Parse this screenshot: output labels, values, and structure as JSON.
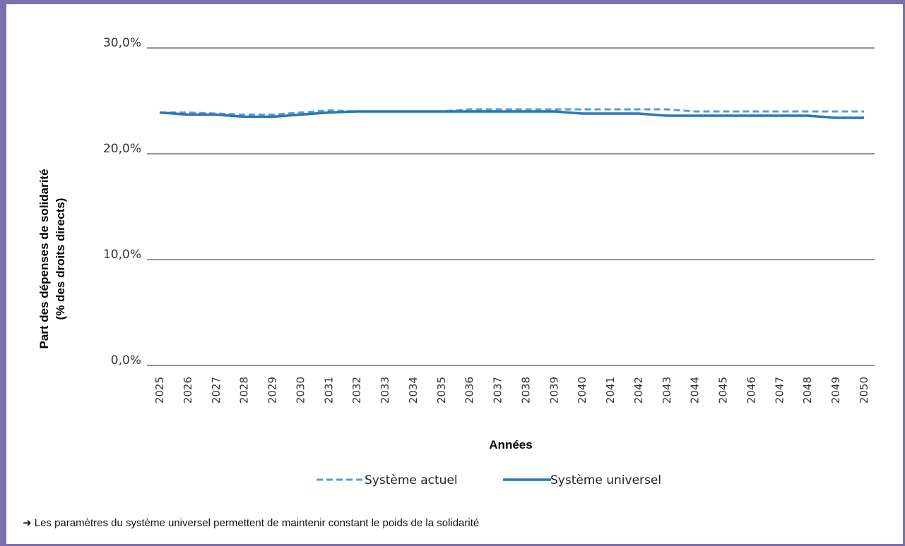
{
  "chart_data": {
    "type": "line",
    "xlabel": "Années",
    "ylabel": [
      "Part des dépenses de solidarité",
      "(% des droits directs)"
    ],
    "ylim": [
      0,
      30
    ],
    "yticks": [
      "0,0%",
      "10,0%",
      "20,0%",
      "30,0%"
    ],
    "ytick_values": [
      0,
      10,
      20,
      30
    ],
    "grid": true,
    "legend_position": "bottom",
    "x": [
      2025,
      2026,
      2027,
      2028,
      2029,
      2030,
      2031,
      2032,
      2033,
      2034,
      2035,
      2036,
      2037,
      2038,
      2039,
      2040,
      2041,
      2042,
      2043,
      2044,
      2045,
      2046,
      2047,
      2048,
      2049,
      2050
    ],
    "series": [
      {
        "name": "Système actuel",
        "style": "dashed",
        "color": "#5b9bd5",
        "values": [
          23.9,
          23.9,
          23.8,
          23.7,
          23.7,
          23.9,
          24.1,
          24.0,
          24.0,
          24.0,
          24.0,
          24.2,
          24.2,
          24.2,
          24.2,
          24.2,
          24.2,
          24.2,
          24.2,
          24.0,
          24.0,
          24.0,
          24.0,
          24.0,
          24.0,
          24.0
        ]
      },
      {
        "name": "Système universel",
        "style": "solid",
        "color": "#2e75b6",
        "values": [
          23.9,
          23.7,
          23.7,
          23.5,
          23.5,
          23.7,
          23.9,
          24.0,
          24.0,
          24.0,
          24.0,
          24.0,
          24.0,
          24.0,
          24.0,
          23.8,
          23.8,
          23.8,
          23.6,
          23.6,
          23.6,
          23.6,
          23.6,
          23.6,
          23.4,
          23.4
        ]
      }
    ]
  },
  "footnote": "➜ Les paramètres du système universel permettent de maintenir constant le poids de la solidarité",
  "colors": {
    "frame": "#7b6fb0",
    "grid": "#555555"
  }
}
